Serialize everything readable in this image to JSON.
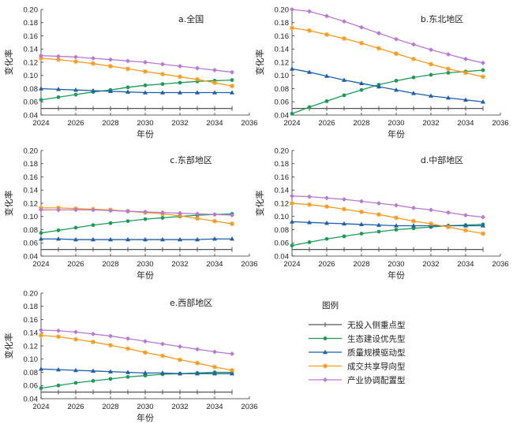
{
  "chart_data": [
    {
      "type": "line",
      "title": "a.全国",
      "xlabel": "年份",
      "ylabel": "变化率",
      "xlim": [
        2024,
        2036
      ],
      "ylim": [
        0.04,
        0.2
      ],
      "x_ticks": [
        2024,
        2026,
        2028,
        2030,
        2032,
        2034,
        2036
      ],
      "y_ticks": [
        0.04,
        0.06,
        0.08,
        0.1,
        0.12,
        0.14,
        0.16,
        0.18,
        0.2
      ],
      "x": [
        2024,
        2025,
        2026,
        2027,
        2028,
        2029,
        2030,
        2031,
        2032,
        2033,
        2034,
        2035
      ],
      "series": [
        {
          "name": "无投入侧重点型",
          "values": [
            0.05,
            0.05,
            0.05,
            0.05,
            0.05,
            0.05,
            0.05,
            0.05,
            0.05,
            0.05,
            0.05,
            0.05
          ]
        },
        {
          "name": "生态建设优先型",
          "values": [
            0.063,
            0.067,
            0.071,
            0.075,
            0.078,
            0.082,
            0.085,
            0.087,
            0.089,
            0.091,
            0.092,
            0.093
          ]
        },
        {
          "name": "质量规模驱动型",
          "values": [
            0.08,
            0.079,
            0.078,
            0.077,
            0.076,
            0.075,
            0.074,
            0.074,
            0.074,
            0.074,
            0.074,
            0.074
          ]
        },
        {
          "name": "成交共享导向型",
          "values": [
            0.126,
            0.124,
            0.121,
            0.118,
            0.114,
            0.11,
            0.106,
            0.102,
            0.098,
            0.094,
            0.089,
            0.084
          ]
        },
        {
          "name": "产业协调配置型",
          "values": [
            0.13,
            0.129,
            0.128,
            0.126,
            0.124,
            0.122,
            0.12,
            0.117,
            0.114,
            0.111,
            0.108,
            0.105
          ]
        }
      ]
    },
    {
      "type": "line",
      "title": "b.东北地区",
      "xlabel": "年份",
      "ylabel": "变化率",
      "xlim": [
        2024,
        2036
      ],
      "ylim": [
        0.04,
        0.2
      ],
      "x_ticks": [
        2024,
        2026,
        2028,
        2030,
        2032,
        2034,
        2036
      ],
      "y_ticks": [
        0.04,
        0.06,
        0.08,
        0.1,
        0.12,
        0.14,
        0.16,
        0.18,
        0.2
      ],
      "x": [
        2024,
        2025,
        2026,
        2027,
        2028,
        2029,
        2030,
        2031,
        2032,
        2033,
        2034,
        2035
      ],
      "series": [
        {
          "name": "无投入侧重点型",
          "values": [
            0.05,
            0.05,
            0.05,
            0.05,
            0.05,
            0.05,
            0.05,
            0.05,
            0.05,
            0.05,
            0.05,
            0.05
          ]
        },
        {
          "name": "生态建设优先型",
          "values": [
            0.042,
            0.052,
            0.061,
            0.07,
            0.078,
            0.086,
            0.092,
            0.097,
            0.101,
            0.104,
            0.106,
            0.108
          ]
        },
        {
          "name": "质量规模驱动型",
          "values": [
            0.11,
            0.105,
            0.099,
            0.093,
            0.088,
            0.083,
            0.078,
            0.073,
            0.069,
            0.066,
            0.063,
            0.06
          ]
        },
        {
          "name": "成交共享导向型",
          "values": [
            0.172,
            0.168,
            0.162,
            0.156,
            0.149,
            0.141,
            0.133,
            0.125,
            0.117,
            0.11,
            0.104,
            0.098
          ]
        },
        {
          "name": "产业协调配置型",
          "values": [
            0.2,
            0.197,
            0.19,
            0.182,
            0.173,
            0.164,
            0.155,
            0.147,
            0.139,
            0.132,
            0.125,
            0.119
          ]
        }
      ]
    },
    {
      "type": "line",
      "title": "c.东部地区",
      "xlabel": "年份",
      "ylabel": "变化率",
      "xlim": [
        2024,
        2036
      ],
      "ylim": [
        0.04,
        0.2
      ],
      "x_ticks": [
        2024,
        2026,
        2028,
        2030,
        2032,
        2034,
        2036
      ],
      "y_ticks": [
        0.04,
        0.06,
        0.08,
        0.1,
        0.12,
        0.14,
        0.16,
        0.18,
        0.2
      ],
      "x": [
        2024,
        2025,
        2026,
        2027,
        2028,
        2029,
        2030,
        2031,
        2032,
        2033,
        2034,
        2035
      ],
      "series": [
        {
          "name": "无投入侧重点型",
          "values": [
            0.05,
            0.05,
            0.05,
            0.05,
            0.05,
            0.05,
            0.05,
            0.05,
            0.05,
            0.05,
            0.05,
            0.05
          ]
        },
        {
          "name": "生态建设优先型",
          "values": [
            0.075,
            0.079,
            0.083,
            0.087,
            0.09,
            0.093,
            0.096,
            0.098,
            0.1,
            0.102,
            0.103,
            0.104
          ]
        },
        {
          "name": "质量规模驱动型",
          "values": [
            0.066,
            0.066,
            0.065,
            0.065,
            0.065,
            0.065,
            0.065,
            0.065,
            0.065,
            0.065,
            0.066,
            0.066
          ]
        },
        {
          "name": "成交共享导向型",
          "values": [
            0.113,
            0.113,
            0.112,
            0.111,
            0.11,
            0.108,
            0.106,
            0.104,
            0.101,
            0.097,
            0.093,
            0.089
          ]
        },
        {
          "name": "产业协调配置型",
          "values": [
            0.11,
            0.11,
            0.11,
            0.11,
            0.109,
            0.108,
            0.107,
            0.106,
            0.105,
            0.104,
            0.103,
            0.102
          ]
        }
      ]
    },
    {
      "type": "line",
      "title": "d.中部地区",
      "xlabel": "年份",
      "ylabel": "变化率",
      "xlim": [
        2024,
        2036
      ],
      "ylim": [
        0.04,
        0.2
      ],
      "x_ticks": [
        2024,
        2026,
        2028,
        2030,
        2032,
        2034,
        2036
      ],
      "y_ticks": [
        0.04,
        0.06,
        0.08,
        0.1,
        0.12,
        0.14,
        0.16,
        0.18,
        0.2
      ],
      "x": [
        2024,
        2025,
        2026,
        2027,
        2028,
        2029,
        2030,
        2031,
        2032,
        2033,
        2034,
        2035
      ],
      "series": [
        {
          "name": "无投入侧重点型",
          "values": [
            0.05,
            0.05,
            0.05,
            0.05,
            0.05,
            0.05,
            0.05,
            0.05,
            0.05,
            0.05,
            0.05,
            0.05
          ]
        },
        {
          "name": "生态建设优先型",
          "values": [
            0.056,
            0.061,
            0.066,
            0.07,
            0.074,
            0.077,
            0.08,
            0.082,
            0.084,
            0.086,
            0.087,
            0.088
          ]
        },
        {
          "name": "质量规模驱动型",
          "values": [
            0.092,
            0.091,
            0.09,
            0.089,
            0.088,
            0.087,
            0.086,
            0.086,
            0.086,
            0.086,
            0.086,
            0.086
          ]
        },
        {
          "name": "成交共享导向型",
          "values": [
            0.12,
            0.118,
            0.115,
            0.111,
            0.107,
            0.103,
            0.098,
            0.093,
            0.089,
            0.084,
            0.079,
            0.074
          ]
        },
        {
          "name": "产业协调配置型",
          "values": [
            0.131,
            0.13,
            0.128,
            0.126,
            0.123,
            0.12,
            0.117,
            0.113,
            0.11,
            0.106,
            0.102,
            0.099
          ]
        }
      ]
    },
    {
      "type": "line",
      "title": "e.西部地区",
      "xlabel": "年份",
      "ylabel": "变化率",
      "xlim": [
        2024,
        2036
      ],
      "ylim": [
        0.04,
        0.2
      ],
      "x_ticks": [
        2024,
        2026,
        2028,
        2030,
        2032,
        2034,
        2036
      ],
      "y_ticks": [
        0.04,
        0.06,
        0.08,
        0.1,
        0.12,
        0.14,
        0.16,
        0.18,
        0.2
      ],
      "x": [
        2024,
        2025,
        2026,
        2027,
        2028,
        2029,
        2030,
        2031,
        2032,
        2033,
        2034,
        2035
      ],
      "series": [
        {
          "name": "无投入侧重点型",
          "values": [
            0.05,
            0.05,
            0.05,
            0.05,
            0.05,
            0.05,
            0.05,
            0.05,
            0.05,
            0.05,
            0.05,
            0.05
          ]
        },
        {
          "name": "生态建设优先型",
          "values": [
            0.056,
            0.06,
            0.064,
            0.067,
            0.07,
            0.073,
            0.075,
            0.077,
            0.078,
            0.079,
            0.08,
            0.08
          ]
        },
        {
          "name": "质量规模驱动型",
          "values": [
            0.085,
            0.084,
            0.083,
            0.082,
            0.081,
            0.08,
            0.079,
            0.079,
            0.078,
            0.078,
            0.078,
            0.078
          ]
        },
        {
          "name": "成交共享导向型",
          "values": [
            0.136,
            0.134,
            0.13,
            0.126,
            0.121,
            0.116,
            0.11,
            0.105,
            0.099,
            0.094,
            0.088,
            0.083
          ]
        },
        {
          "name": "产业协调配置型",
          "values": [
            0.144,
            0.143,
            0.141,
            0.138,
            0.135,
            0.131,
            0.127,
            0.123,
            0.119,
            0.115,
            0.111,
            0.108
          ]
        }
      ]
    }
  ],
  "legend": {
    "title": "图例",
    "entries": [
      "无投入侧重点型",
      "生态建设优先型",
      "质量规模驱动型",
      "成交共享导向型",
      "产业协调配置型"
    ]
  },
  "series_style": [
    {
      "color": "#555555",
      "marker": "plus"
    },
    {
      "color": "#1e9a58",
      "marker": "circle"
    },
    {
      "color": "#1f5fa8",
      "marker": "triangle"
    },
    {
      "color": "#f39a1f",
      "marker": "star"
    },
    {
      "color": "#b77ad1",
      "marker": "diamond"
    }
  ]
}
